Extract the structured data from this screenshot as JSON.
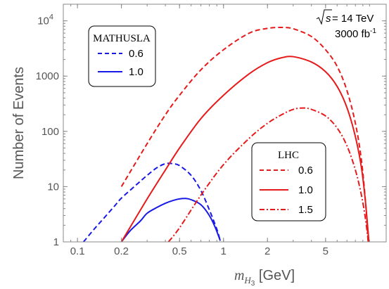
{
  "chart_data": {
    "type": "line",
    "xlabel_main": "m",
    "xlabel_sub": "H",
    "xlabel_subsub": "3",
    "xlabel_unit": " [GeV]",
    "ylabel": "Number of Events",
    "x_scale": "log",
    "y_scale": "log",
    "xlim": [
      0.08,
      13
    ],
    "ylim": [
      1,
      20000
    ],
    "grid": false,
    "x_ticks": [
      {
        "value": 0.1,
        "label": "0.1"
      },
      {
        "value": 0.2,
        "label": "0.2"
      },
      {
        "value": 0.5,
        "label": "0.5"
      },
      {
        "value": 1,
        "label": "1"
      },
      {
        "value": 2,
        "label": "2"
      },
      {
        "value": 5,
        "label": "5"
      }
    ],
    "y_ticks": [
      {
        "value": 1,
        "label": "1"
      },
      {
        "value": 10,
        "label": "10"
      },
      {
        "value": 100,
        "label": "100"
      },
      {
        "value": 1000,
        "label": "1000"
      },
      {
        "value": 10000,
        "label": "10",
        "sup": "4"
      }
    ],
    "annotation": {
      "line1_text": " = 14 TeV",
      "line1_symbol": "s",
      "line2_text": "3000 fb",
      "line2_sup": "-1"
    },
    "legends": [
      {
        "title": "MATHUSLA",
        "placement": "top-left",
        "entries": [
          {
            "label": "0.6",
            "color": "#1a1ae6",
            "dash": "dashed"
          },
          {
            "label": "1.0",
            "color": "#1a1ae6",
            "dash": "solid"
          }
        ]
      },
      {
        "title": "LHC",
        "placement": "bottom-right",
        "entries": [
          {
            "label": "0.6",
            "color": "#e61a1a",
            "dash": "dashed"
          },
          {
            "label": "1.0",
            "color": "#e61a1a",
            "dash": "solid"
          },
          {
            "label": "1.5",
            "color": "#e61a1a",
            "dash": "dashdot"
          }
        ]
      }
    ],
    "series": [
      {
        "group": "MATHUSLA",
        "label": "0.6",
        "color": "#1a1ae6",
        "dash": "dashed",
        "points": [
          [
            0.11,
            1
          ],
          [
            0.13,
            1.7
          ],
          [
            0.15,
            2.6
          ],
          [
            0.18,
            4.5
          ],
          [
            0.2,
            6.2
          ],
          [
            0.25,
            10.5
          ],
          [
            0.3,
            16
          ],
          [
            0.35,
            22
          ],
          [
            0.4,
            26
          ],
          [
            0.45,
            26
          ],
          [
            0.5,
            24
          ],
          [
            0.6,
            16
          ],
          [
            0.7,
            8.5
          ],
          [
            0.8,
            3.8
          ],
          [
            0.9,
            1.7
          ],
          [
            0.95,
            1.05
          ]
        ]
      },
      {
        "group": "MATHUSLA",
        "label": "1.0",
        "color": "#1a1ae6",
        "dash": "solid",
        "points": [
          [
            0.2,
            1
          ],
          [
            0.23,
            1.6
          ],
          [
            0.27,
            2.4
          ],
          [
            0.3,
            3.3
          ],
          [
            0.35,
            4.2
          ],
          [
            0.4,
            5.0
          ],
          [
            0.45,
            5.6
          ],
          [
            0.5,
            6.0
          ],
          [
            0.55,
            6.1
          ],
          [
            0.6,
            5.8
          ],
          [
            0.7,
            4.7
          ],
          [
            0.8,
            3.0
          ],
          [
            0.88,
            1.8
          ],
          [
            0.95,
            1.05
          ]
        ]
      },
      {
        "group": "LHC",
        "label": "0.6",
        "color": "#e61a1a",
        "dash": "dashed",
        "points": [
          [
            0.2,
            10
          ],
          [
            0.3,
            60
          ],
          [
            0.4,
            200
          ],
          [
            0.5,
            450
          ],
          [
            0.7,
            1300
          ],
          [
            1,
            3000
          ],
          [
            1.5,
            6000
          ],
          [
            2,
            7300
          ],
          [
            2.5,
            7600
          ],
          [
            3,
            7200
          ],
          [
            4,
            5200
          ],
          [
            5,
            3000
          ],
          [
            6,
            1500
          ],
          [
            7,
            550
          ],
          [
            8,
            140
          ],
          [
            8.8,
            30
          ],
          [
            9.4,
            5
          ],
          [
            9.8,
            1
          ]
        ]
      },
      {
        "group": "LHC",
        "label": "1.0",
        "color": "#e61a1a",
        "dash": "solid",
        "points": [
          [
            0.2,
            1
          ],
          [
            0.3,
            6
          ],
          [
            0.4,
            20
          ],
          [
            0.5,
            50
          ],
          [
            0.7,
            170
          ],
          [
            1,
            450
          ],
          [
            1.5,
            1100
          ],
          [
            2,
            1750
          ],
          [
            2.5,
            2150
          ],
          [
            3,
            2250
          ],
          [
            4,
            1800
          ],
          [
            5,
            1200
          ],
          [
            6,
            650
          ],
          [
            7,
            270
          ],
          [
            8,
            80
          ],
          [
            8.8,
            22
          ],
          [
            9.4,
            5
          ],
          [
            9.9,
            1
          ]
        ]
      },
      {
        "group": "LHC",
        "label": "1.5",
        "color": "#e61a1a",
        "dash": "dashdot",
        "points": [
          [
            0.42,
            1
          ],
          [
            0.5,
            1.8
          ],
          [
            0.7,
            7
          ],
          [
            1,
            25
          ],
          [
            1.5,
            75
          ],
          [
            2,
            140
          ],
          [
            2.5,
            200
          ],
          [
            3,
            250
          ],
          [
            3.5,
            265
          ],
          [
            4,
            250
          ],
          [
            5,
            190
          ],
          [
            6,
            115
          ],
          [
            7,
            55
          ],
          [
            8,
            20
          ],
          [
            8.8,
            7
          ],
          [
            9.4,
            2.5
          ],
          [
            9.8,
            1
          ]
        ]
      }
    ]
  }
}
